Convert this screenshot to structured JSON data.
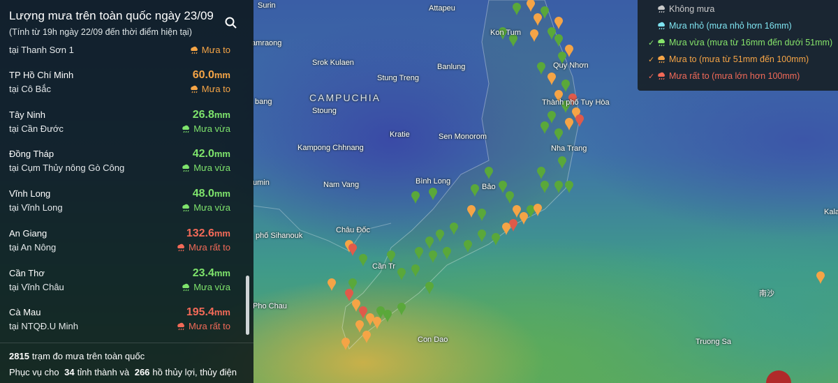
{
  "header": {
    "title": "Lượng mưa trên toàn quốc ngày 23/09",
    "subtitle": "(Tính từ 19h ngày 22/09 đến thời điểm hiện tại)"
  },
  "partial_row": {
    "station": "tại Thanh Sơn 1",
    "level": "Mưa to",
    "color": "#f5a446"
  },
  "rows": [
    {
      "province": "TP Hồ Chí Minh",
      "value": "60.0",
      "unit": "mm",
      "station": "tại Cô Bắc",
      "level": "Mưa to",
      "color": "#f5a446"
    },
    {
      "province": "Tây Ninh",
      "value": "26.8",
      "unit": "mm",
      "station": "tại Cần Đước",
      "level": "Mưa vừa",
      "color": "#7ee36c"
    },
    {
      "province": "Đồng Tháp",
      "value": "42.0",
      "unit": "mm",
      "station": "tại Cụm Thủy nông Gò Công",
      "level": "Mưa vừa",
      "color": "#7ee36c"
    },
    {
      "province": "Vĩnh Long",
      "value": "48.0",
      "unit": "mm",
      "station": "tại Vĩnh Long",
      "level": "Mưa vừa",
      "color": "#7ee36c"
    },
    {
      "province": "An Giang",
      "value": "132.6",
      "unit": "mm",
      "station": "tại An Nông",
      "level": "Mưa rất to",
      "color": "#f26a58"
    },
    {
      "province": "Cần Thơ",
      "value": "23.4",
      "unit": "mm",
      "station": "tại Vĩnh Châu",
      "level": "Mưa vừa",
      "color": "#7ee36c"
    },
    {
      "province": "Cà Mau",
      "value": "195.4",
      "unit": "mm",
      "station": "tại NTQĐ.U Minh",
      "level": "Mưa rất to",
      "color": "#f26a58"
    }
  ],
  "footer": {
    "stations_count": "2815",
    "stations_text": "trạm đo mưa trên toàn quốc",
    "serve_prefix": "Phục vụ cho",
    "provinces_count": "34",
    "provinces_text": "tỉnh thành và",
    "reservoirs_count": "266",
    "reservoirs_text": "hồ thủy lợi, thủy điện"
  },
  "legend": [
    {
      "label": "Không mưa",
      "color": "#c9c9c9",
      "checked": false
    },
    {
      "label": "Mưa nhỏ (mưa nhỏ hơn 16mm)",
      "color": "#7fe3f0",
      "checked": false
    },
    {
      "label": "Mưa vừa (mưa từ 16mm đến dưới 51mm)",
      "color": "#86e36a",
      "checked": true
    },
    {
      "label": "Mưa to (mưa từ 51mm đến 100mm)",
      "color": "#f5a446",
      "checked": true
    },
    {
      "label": "Mưa rất to (mưa lớn hơn 100mm)",
      "color": "#f26a58",
      "checked": true
    }
  ],
  "map": {
    "labels": [
      "Surin",
      "Attapeu",
      "Kon Tum",
      "amraong",
      "Srok Kulaen",
      "Banlung",
      "Quy Nhơn",
      "Stung Treng",
      "CAMPUCHIA",
      "Thành phố Tuy Hòa",
      "bang",
      "Stoung",
      "Kratie",
      "Sen Monorom",
      "Nha Trang",
      "Kampong Chhnang",
      "Bình Long",
      "umin",
      "Nam Vang",
      "Bảo",
      "Kalay",
      "Châu Đốc",
      "phố Sihanouk",
      "Cần Tr",
      "Pho Chau",
      "Con Dao",
      "Truong Sa",
      "南沙"
    ]
  }
}
